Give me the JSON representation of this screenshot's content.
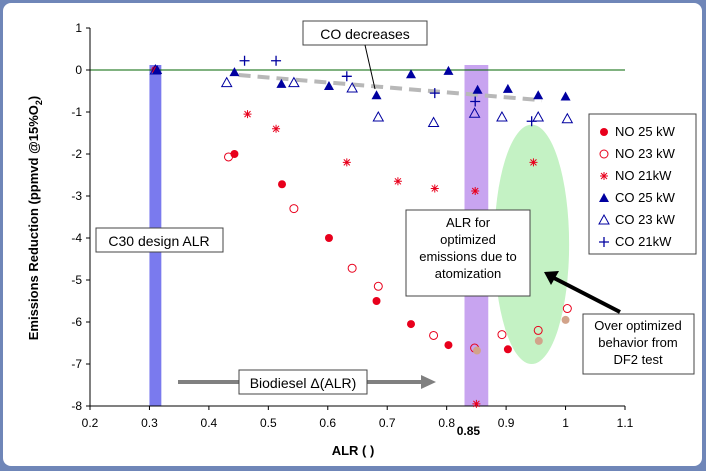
{
  "chart_data": {
    "type": "scatter",
    "xlabel": "ALR ( )",
    "ylabel": "Emissions Reduction (ppmvd @15%O",
    "ylabel_sub": "2",
    "ylabel_end": ")",
    "xlim": [
      0.2,
      1.1
    ],
    "ylim": [
      -8,
      1
    ],
    "x_ticks": [
      "0.2",
      "0.3",
      "0.4",
      "0.5",
      "0.6",
      "0.7",
      "0.8",
      "0.9",
      "1",
      "1.1"
    ],
    "y_ticks": [
      "1",
      "0",
      "-1",
      "-2",
      "-3",
      "-4",
      "-5",
      "-6",
      "-7",
      "-8"
    ],
    "extra_x_label": "0.85",
    "series": [
      {
        "name": "NO 25 kW",
        "marker": "filled-circle",
        "color": "#e8001c",
        "points": [
          [
            0.31,
            0
          ],
          [
            0.443,
            -2
          ],
          [
            0.523,
            -2.72
          ],
          [
            0.602,
            -4.0
          ],
          [
            0.682,
            -5.5
          ],
          [
            0.74,
            -6.05
          ],
          [
            0.803,
            -6.55
          ],
          [
            0.903,
            -6.65
          ]
        ]
      },
      {
        "name": "NO 23 kW",
        "marker": "open-circle",
        "color": "#e8001c",
        "points": [
          [
            0.433,
            -2.07
          ],
          [
            0.543,
            -3.3
          ],
          [
            0.641,
            -4.72
          ],
          [
            0.685,
            -5.15
          ],
          [
            0.778,
            -6.32
          ],
          [
            0.847,
            -6.62
          ],
          [
            0.893,
            -6.3
          ],
          [
            0.954,
            -6.2
          ],
          [
            1.003,
            -5.68
          ]
        ]
      },
      {
        "name": "NO 21kW",
        "marker": "star",
        "color": "#e8001c",
        "points": [
          [
            0.465,
            -1.05
          ],
          [
            0.513,
            -1.4
          ],
          [
            0.632,
            -2.2
          ],
          [
            0.718,
            -2.65
          ],
          [
            0.78,
            -2.82
          ],
          [
            0.848,
            -2.88
          ],
          [
            0.946,
            -2.2
          ],
          [
            0.85,
            -7.95
          ]
        ]
      },
      {
        "name": "CO 25 kW",
        "marker": "filled-triangle",
        "color": "#0000a0",
        "points": [
          [
            0.313,
            0
          ],
          [
            0.443,
            -0.05
          ],
          [
            0.522,
            -0.33
          ],
          [
            0.602,
            -0.38
          ],
          [
            0.682,
            -0.6
          ],
          [
            0.74,
            -0.1
          ],
          [
            0.803,
            -0.02
          ],
          [
            0.852,
            -0.47
          ],
          [
            0.903,
            -0.45
          ],
          [
            0.954,
            -0.6
          ],
          [
            1.0,
            -0.63
          ]
        ]
      },
      {
        "name": "CO 23 kW",
        "marker": "open-triangle",
        "color": "#0000a0",
        "points": [
          [
            0.31,
            0
          ],
          [
            0.43,
            -0.3
          ],
          [
            0.543,
            -0.3
          ],
          [
            0.641,
            -0.43
          ],
          [
            0.685,
            -1.12
          ],
          [
            0.778,
            -1.25
          ],
          [
            0.847,
            -1.03
          ],
          [
            0.893,
            -1.12
          ],
          [
            0.954,
            -1.12
          ],
          [
            1.003,
            -1.16
          ]
        ]
      },
      {
        "name": "CO 21kW",
        "marker": "plus",
        "color": "#0000a0",
        "points": [
          [
            0.46,
            0.22
          ],
          [
            0.513,
            0.22
          ],
          [
            0.632,
            -0.15
          ],
          [
            0.78,
            -0.55
          ],
          [
            0.848,
            -0.75
          ],
          [
            0.943,
            -1.22
          ]
        ]
      }
    ],
    "shaded_points": [
      [
        0.851,
        -6.68
      ],
      [
        0.955,
        -6.45
      ],
      [
        1.0,
        -5.95
      ]
    ],
    "trend": {
      "from": [
        0.45,
        -0.12
      ],
      "to": [
        0.96,
        -0.72
      ]
    },
    "vertical_bands": [
      {
        "x0": 0.3,
        "x1": 0.32,
        "color": "#7a7aee"
      },
      {
        "x0": 0.83,
        "x1": 0.87,
        "color": "#c8a4f0"
      }
    ],
    "green_ellipse": {
      "cx": 0.943,
      "cy": -4.15,
      "rx": 0.063,
      "ry": 2.85
    },
    "annotations": {
      "co_decreases": "CO decreases",
      "c30_design": "C30 design ALR",
      "alr_optimized": [
        "ALR for",
        "optimized",
        "emissions due to",
        "atomization"
      ],
      "over_optimized": [
        "Over optimized",
        "behavior from",
        "DF2 test"
      ],
      "biodiesel_prefix": "Biodiesel ",
      "biodiesel_delta": "Δ(ALR)"
    },
    "legend_position": "right",
    "colors": {
      "frame": "#6f86b8",
      "zero_line": "#006400",
      "trend": "#b8b8b8",
      "green": "#c4f2c4"
    }
  }
}
